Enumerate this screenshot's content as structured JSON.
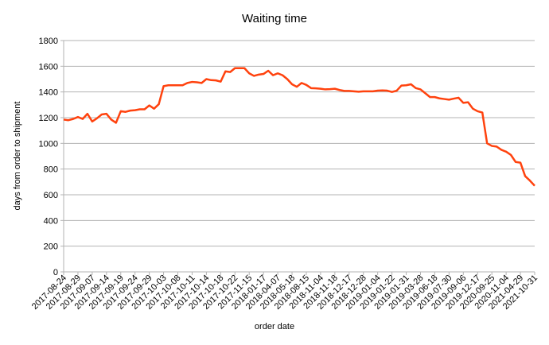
{
  "chart_data": {
    "type": "line",
    "title": "Waiting time",
    "x_label": "order date",
    "y_label": "days from order to shipment",
    "categories": [
      "2017-08-24",
      null,
      null,
      "2017-08-29",
      null,
      null,
      "2017-09-07",
      null,
      null,
      "2017-09-14",
      null,
      null,
      "2017-09-19",
      null,
      null,
      "2017-09-24",
      null,
      null,
      "2017-09-29",
      null,
      null,
      "2017-10-03",
      null,
      null,
      "2017-10-08",
      null,
      null,
      "2017-10-11",
      null,
      null,
      "2017-10-14",
      null,
      null,
      "2017-10-18",
      null,
      null,
      "2017-10-22",
      null,
      null,
      "2017-11-15",
      null,
      null,
      "2018-01-17",
      null,
      null,
      "2018-04-07",
      null,
      null,
      "2018-05-18",
      null,
      null,
      "2018-08-15",
      null,
      null,
      "2018-11-04",
      null,
      null,
      "2018-11-18",
      null,
      null,
      "2018-12-17",
      null,
      null,
      "2018-12-28",
      null,
      null,
      "2019-01-04",
      null,
      null,
      "2019-01-22",
      null,
      null,
      "2019-01-31",
      null,
      null,
      "2019-03-28",
      null,
      null,
      "2019-06-18",
      null,
      null,
      "2019-07-30",
      null,
      null,
      "2019-09-06",
      null,
      null,
      "2019-12-17",
      null,
      null,
      "2020-09-25",
      null,
      null,
      "2020-11-04",
      null,
      null,
      "2021-04-29",
      null,
      null,
      "2021-10-31"
    ],
    "series": [
      {
        "name": "Waiting time",
        "color": "#ff420e",
        "values": [
          1185,
          1180,
          1190,
          1205,
          1190,
          1230,
          1170,
          1195,
          1225,
          1230,
          1185,
          1160,
          1250,
          1245,
          1255,
          1258,
          1265,
          1265,
          1295,
          1270,
          1305,
          1445,
          1452,
          1452,
          1452,
          1452,
          1470,
          1478,
          1475,
          1470,
          1500,
          1492,
          1490,
          1480,
          1560,
          1555,
          1585,
          1585,
          1585,
          1545,
          1525,
          1535,
          1540,
          1565,
          1530,
          1545,
          1530,
          1500,
          1460,
          1440,
          1470,
          1455,
          1430,
          1428,
          1425,
          1420,
          1422,
          1425,
          1415,
          1408,
          1408,
          1405,
          1402,
          1405,
          1405,
          1405,
          1410,
          1412,
          1410,
          1400,
          1410,
          1450,
          1452,
          1460,
          1430,
          1420,
          1390,
          1360,
          1360,
          1350,
          1345,
          1340,
          1348,
          1355,
          1315,
          1320,
          1270,
          1250,
          1240,
          1000,
          980,
          975,
          950,
          935,
          910,
          855,
          850,
          745,
          710,
          670
        ]
      }
    ],
    "ylim": [
      0,
      1800
    ],
    "yticks": [
      0,
      200,
      400,
      600,
      800,
      1000,
      1200,
      1400,
      1600,
      1800
    ],
    "grid": true
  }
}
